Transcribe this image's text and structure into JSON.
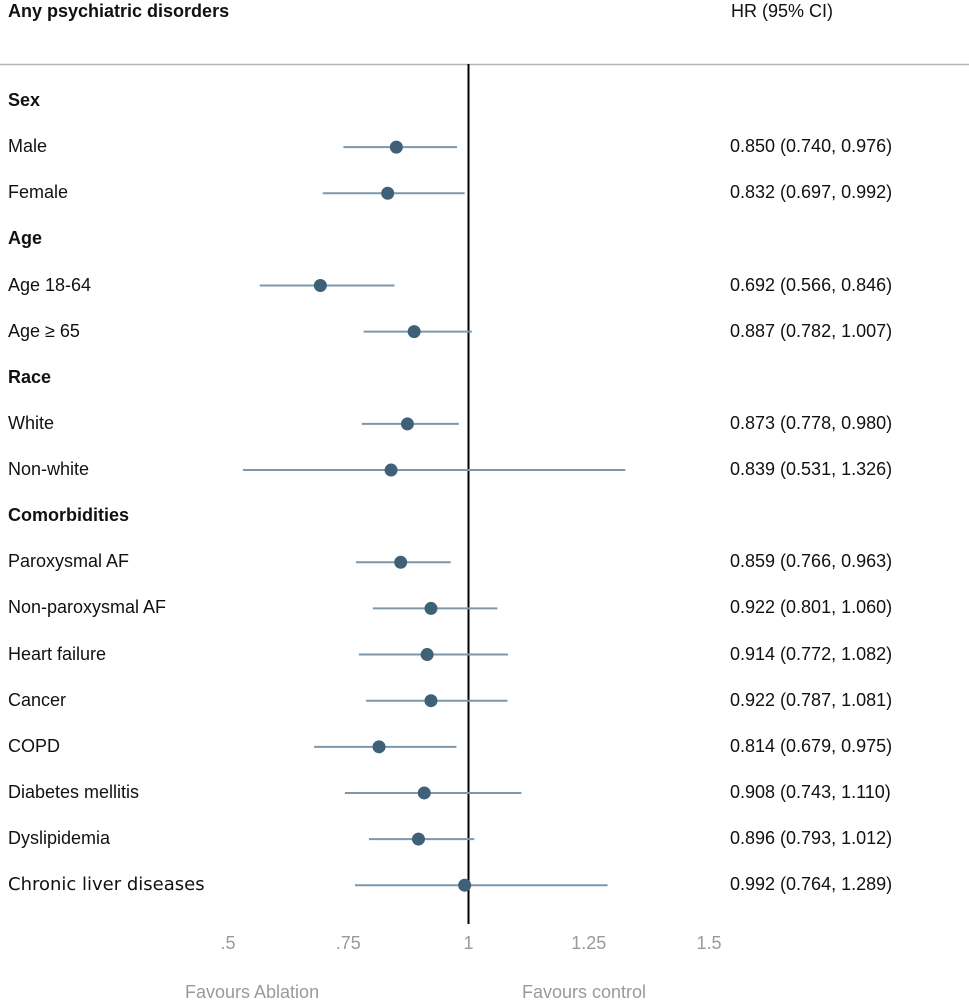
{
  "header": {
    "title": "Any psychiatric disorders",
    "hr_column": "HR (95% CI)"
  },
  "colors": {
    "point": "#3f6178",
    "ci_line": "#7d97ab",
    "ref_line": "#000000",
    "divider": "#b5b5b5",
    "axis_text": "#9a9a9a"
  },
  "chart_data": {
    "type": "forest",
    "title": "Any psychiatric disorders",
    "xlabel_left": "Favours Ablation",
    "xlabel_right": "Favours control",
    "xlim": [
      0.5,
      1.5
    ],
    "reference": 1,
    "x_ticks": [
      {
        "value": 0.5,
        "label": ".5"
      },
      {
        "value": 0.75,
        "label": ".75"
      },
      {
        "value": 1,
        "label": "1"
      },
      {
        "value": 1.25,
        "label": "1.25"
      },
      {
        "value": 1.5,
        "label": "1.5"
      }
    ],
    "rows": [
      {
        "label": "Sex",
        "group": true
      },
      {
        "label": "Male",
        "hr": 0.85,
        "lo": 0.74,
        "hi": 0.976,
        "text": "0.850 (0.740, 0.976)"
      },
      {
        "label": "Female",
        "hr": 0.832,
        "lo": 0.697,
        "hi": 0.992,
        "text": "0.832 (0.697, 0.992)"
      },
      {
        "label": "Age",
        "group": true
      },
      {
        "label": "Age 18-64",
        "hr": 0.692,
        "lo": 0.566,
        "hi": 0.846,
        "text": "0.692 (0.566, 0.846)"
      },
      {
        "label": "Age ≥ 65",
        "hr": 0.887,
        "lo": 0.782,
        "hi": 1.007,
        "text": "0.887 (0.782, 1.007)"
      },
      {
        "label": "Race",
        "group": true
      },
      {
        "label": "White",
        "hr": 0.873,
        "lo": 0.778,
        "hi": 0.98,
        "text": "0.873 (0.778, 0.980)"
      },
      {
        "label": "Non-white",
        "hr": 0.839,
        "lo": 0.531,
        "hi": 1.326,
        "text": "0.839 (0.531, 1.326)"
      },
      {
        "label": "Comorbidities",
        "group": true
      },
      {
        "label": "Paroxysmal AF",
        "hr": 0.859,
        "lo": 0.766,
        "hi": 0.963,
        "text": "0.859 (0.766, 0.963)"
      },
      {
        "label": "Non-paroxysmal AF",
        "hr": 0.922,
        "lo": 0.801,
        "hi": 1.06,
        "text": "0.922 (0.801, 1.060)"
      },
      {
        "label": "Heart failure",
        "hr": 0.914,
        "lo": 0.772,
        "hi": 1.082,
        "text": "0.914 (0.772, 1.082)"
      },
      {
        "label": "Cancer",
        "hr": 0.922,
        "lo": 0.787,
        "hi": 1.081,
        "text": "0.922 (0.787, 1.081)"
      },
      {
        "label": "COPD",
        "hr": 0.814,
        "lo": 0.679,
        "hi": 0.975,
        "text": "0.814 (0.679, 0.975)"
      },
      {
        "label": "Diabetes mellitis",
        "hr": 0.908,
        "lo": 0.743,
        "hi": 1.11,
        "text": "0.908 (0.743, 1.110)"
      },
      {
        "label": "Dyslipidemia",
        "hr": 0.896,
        "lo": 0.793,
        "hi": 1.012,
        "text": "0.896 (0.793, 1.012)"
      },
      {
        "label": "Chronic liver diseases",
        "hr": 0.992,
        "lo": 0.764,
        "hi": 1.289,
        "text": "0.992 (0.764, 1.289)"
      }
    ]
  }
}
